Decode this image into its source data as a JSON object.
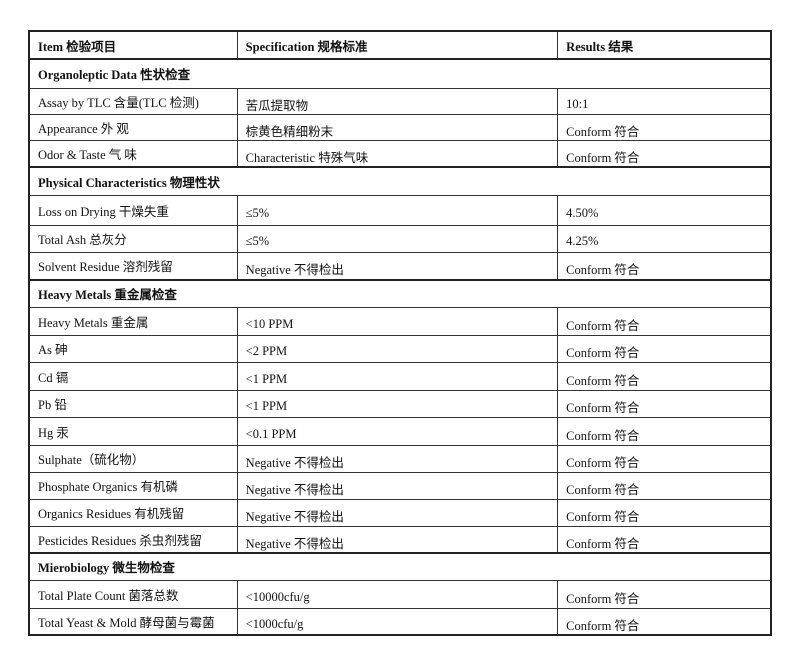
{
  "header": {
    "item": "Item 检验项目",
    "specification": "Specification 规格标准",
    "results": "Results 结果"
  },
  "rows": [
    {
      "type": "section",
      "label": "Organoleptic Data 性状检查"
    },
    {
      "type": "row",
      "item": "Assay by TLC 含量(TLC 检测)",
      "spec": "苦瓜提取物",
      "result": "10:1"
    },
    {
      "type": "row",
      "item": "Appearance 外 观",
      "spec": "棕黄色精细粉末",
      "result": "Conform 符合"
    },
    {
      "type": "row",
      "item": "Odor & Taste 气 味",
      "spec": "Characteristic 特殊气味",
      "result": "Conform 符合"
    },
    {
      "type": "section",
      "label": "Physical Characteristics 物理性状"
    },
    {
      "type": "row",
      "item": "Loss on Drying    干燥失重",
      "spec": "≤5%",
      "result": "4.50%"
    },
    {
      "type": "row",
      "item": "Total Ash    总灰分",
      "spec": "≤5%",
      "result": "4.25%"
    },
    {
      "type": "row",
      "item": "Solvent Residue 溶剂残留",
      "spec": "Negative 不得检出",
      "result": "Conform 符合"
    },
    {
      "type": "section",
      "label": "Heavy Metals 重金属检查"
    },
    {
      "type": "row",
      "item": "Heavy Metals 重金属",
      "spec": "<10 PPM",
      "result": "Conform 符合"
    },
    {
      "type": "row",
      "item": "As 砷",
      "spec": "<2 PPM",
      "result": "Conform 符合"
    },
    {
      "type": "row",
      "item": "Cd 镉",
      "spec": "<1 PPM",
      "result": "Conform 符合"
    },
    {
      "type": "row",
      "item": "Pb 铅",
      "spec": "<1 PPM",
      "result": "Conform 符合"
    },
    {
      "type": "row",
      "item": "Hg 汞",
      "spec": "<0.1 PPM",
      "result": "Conform 符合"
    },
    {
      "type": "row",
      "item": "Sulphate（硫化物）",
      "spec": "Negative 不得检出",
      "result": "Conform 符合"
    },
    {
      "type": "row",
      "item": "Phosphate Organics 有机磷",
      "spec": "Negative 不得检出",
      "result": "Conform 符合"
    },
    {
      "type": "row",
      "item": "Organics Residues 有机残留",
      "spec": "Negative 不得检出",
      "result": "Conform 符合"
    },
    {
      "type": "row",
      "item": "Pesticides Residues 杀虫剂残留",
      "spec": "Negative 不得检出",
      "result": "Conform 符合"
    },
    {
      "type": "section",
      "label": "Mierobiology 微生物检查"
    },
    {
      "type": "row",
      "item": "Total Plate Count    菌落总数",
      "spec": "<10000cfu/g",
      "result": "Conform 符合"
    },
    {
      "type": "row",
      "item": "Total Yeast & Mold 酵母菌与霉菌",
      "spec": "<1000cfu/g",
      "result": "Conform 符合"
    }
  ]
}
